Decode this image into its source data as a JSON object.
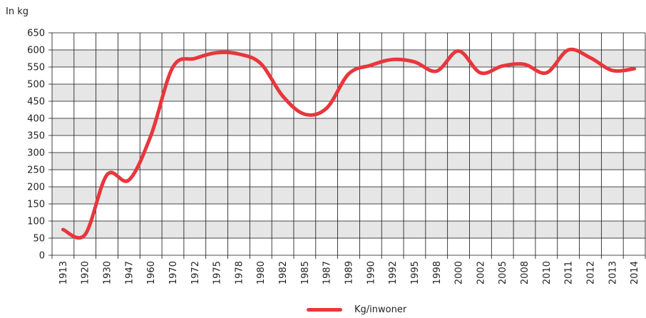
{
  "chart_data": {
    "type": "line",
    "ylabel": "In kg",
    "ylim": [
      0,
      650
    ],
    "yticks": [
      0,
      50,
      100,
      150,
      200,
      250,
      300,
      350,
      400,
      450,
      500,
      550,
      600,
      650
    ],
    "grid": true,
    "legend_position": "bottom-center",
    "line_color": "#e8363c",
    "band_color": "#e6e6e6",
    "categories": [
      "1913",
      "1920",
      "1930",
      "1947",
      "1960",
      "1970",
      "1972",
      "1975",
      "1978",
      "1980",
      "1982",
      "1985",
      "1987",
      "1989",
      "1990",
      "1992",
      "1995",
      "1998",
      "2000",
      "2002",
      "2005",
      "2008",
      "2010",
      "2011",
      "2012",
      "2013",
      "2014"
    ],
    "series": [
      {
        "name": "Kg/inwoner",
        "values": [
          75,
          60,
          235,
          220,
          350,
          550,
          575,
          592,
          588,
          560,
          465,
          412,
          430,
          530,
          555,
          572,
          565,
          538,
          597,
          533,
          553,
          558,
          533,
          600,
          577,
          540,
          545
        ]
      }
    ]
  }
}
